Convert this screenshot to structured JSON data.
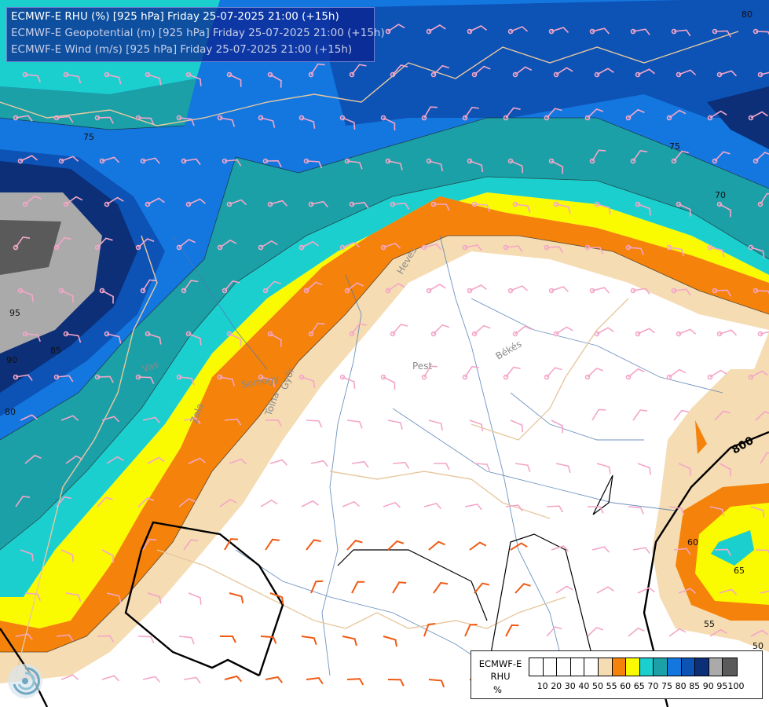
{
  "header": {
    "line1": "ECMWF-E RHU (%) [925 hPa] Friday 25-07-2025 21:00 (+15h)",
    "line2": "ECMWF-E Geopotential (m) [925 hPa] Friday 25-07-2025 21:00 (+15h)",
    "line3": "ECMWF-E Wind (m/s) [925 hPa] Friday 25-07-2025 21:00 (+15h)"
  },
  "legend": {
    "name_line1": "ECMWF-E",
    "name_line2": "RHU",
    "unit": "%",
    "ticks": [
      "10",
      "20",
      "30",
      "40",
      "50",
      "55",
      "60",
      "65",
      "70",
      "75",
      "80",
      "85",
      "90",
      "95",
      "100"
    ],
    "colors": [
      "#ffffff",
      "#ffffff",
      "#ffffff",
      "#ffffff",
      "#ffffff",
      "#f5dcb3",
      "#f5820a",
      "#fafa00",
      "#1ccfcf",
      "#1ba0a8",
      "#1477e0",
      "#0d52b5",
      "#0c2f78",
      "#aaaaaa",
      "#5a5a5a"
    ]
  },
  "map": {
    "region_labels": [
      "Heves",
      "Pest",
      "Békés",
      "Vas",
      "Tolna",
      "Zala",
      "Somogy",
      "Győr"
    ],
    "contour_labels": [
      "75",
      "75",
      "70",
      "95",
      "90",
      "85",
      "80",
      "60",
      "65",
      "55",
      "50",
      "80"
    ],
    "geopotential_label": "800",
    "colors": {
      "rhu_50_55": "#f5dcb3",
      "rhu_55_60": "#f5820a",
      "rhu_60_65": "#fafa00",
      "rhu_65_70": "#1ccfcf",
      "rhu_70_75": "#1ba0a8",
      "rhu_75_80": "#1477e0",
      "rhu_80_85": "#0d52b5",
      "rhu_85_90": "#0c2f78",
      "rhu_90_95": "#aaaaaa",
      "rhu_95_100": "#5a5a5a",
      "wind_barb_light": "#f4a6c8",
      "wind_barb_strong": "#f05a14",
      "border": "#e8c8a0",
      "river": "#4a78b0"
    }
  },
  "logo_icon": "ecmwf-swirl-icon"
}
